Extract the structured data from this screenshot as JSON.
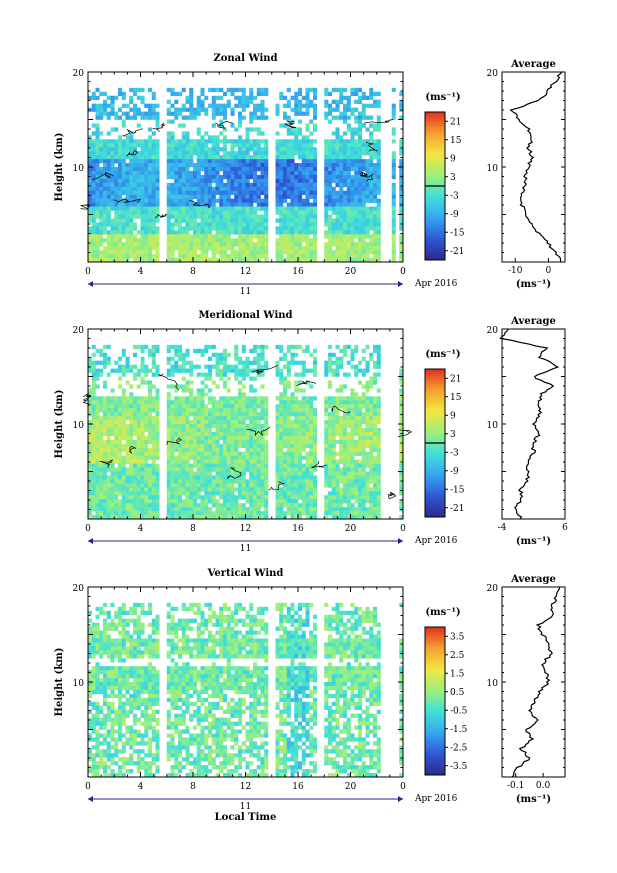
{
  "figure": {
    "x_label": "Local Time",
    "date_label": "Apr 2016",
    "day_label": "11",
    "avg_title": "Average",
    "y_label": "Height (km)"
  },
  "panels": [
    {
      "title": "Zonal Wind",
      "unit": "(ms⁻¹)",
      "x_ticks": [
        "0",
        "4",
        "8",
        "12",
        "16",
        "20",
        "0"
      ],
      "y_ticks": [
        "20",
        "10"
      ],
      "colorbar_ticks": [
        "21",
        "15",
        "9",
        "3",
        "-3",
        "-9",
        "-15",
        "-21"
      ],
      "avg_x_ticks": [
        "-10",
        "0"
      ],
      "avg_unit": "(ms⁻¹)"
    },
    {
      "title": "Meridional Wind",
      "unit": "(ms⁻¹)",
      "x_ticks": [
        "0",
        "4",
        "8",
        "12",
        "16",
        "20",
        "0"
      ],
      "y_ticks": [
        "20",
        "10"
      ],
      "colorbar_ticks": [
        "21",
        "15",
        "9",
        "3",
        "-3",
        "-9",
        "-15",
        "-21"
      ],
      "avg_x_ticks": [
        "-4",
        "6"
      ],
      "avg_unit": "(ms⁻¹)"
    },
    {
      "title": "Vertical Wind",
      "unit": "(ms⁻¹)",
      "x_ticks": [
        "0",
        "4",
        "8",
        "12",
        "16",
        "20",
        "0"
      ],
      "y_ticks": [
        "20",
        "10"
      ],
      "colorbar_ticks": [
        "3.5",
        "2.5",
        "1.5",
        "0.5",
        "-0.5",
        "-1.5",
        "-2.5",
        "-3.5"
      ],
      "avg_x_ticks": [
        "-0.1",
        "0.0"
      ],
      "avg_unit": "(ms⁻¹)"
    }
  ],
  "chart_data": [
    {
      "type": "heatmap",
      "title": "Zonal Wind",
      "x_range_hours": [
        0,
        24
      ],
      "ylim": [
        0,
        20
      ],
      "color_range": [
        -24,
        24
      ],
      "colormap": [
        "#2a2a8a",
        "#2f58d8",
        "#35a8f0",
        "#40e0d8",
        "#9ef07a",
        "#f4e640",
        "#f5a030",
        "#e03020"
      ],
      "avg_profile": {
        "xlim": [
          -14,
          5
        ],
        "height": [
          0,
          1,
          2,
          3,
          4,
          5,
          6,
          7,
          8,
          9,
          10,
          11,
          12,
          13,
          14,
          15,
          16,
          17,
          18,
          19,
          20
        ],
        "values": [
          4,
          2,
          0,
          -3,
          -5,
          -7,
          -8,
          -8,
          -7,
          -7,
          -6,
          -5,
          -6,
          -5,
          -6,
          -9,
          -11,
          -3,
          0,
          2,
          4
        ]
      }
    },
    {
      "type": "heatmap",
      "title": "Meridional Wind",
      "x_range_hours": [
        0,
        24
      ],
      "ylim": [
        0,
        20
      ],
      "color_range": [
        -24,
        24
      ],
      "colormap": [
        "#2a2a8a",
        "#2f58d8",
        "#35a8f0",
        "#40e0d8",
        "#9ef07a",
        "#f4e640",
        "#f5a030",
        "#e03020"
      ],
      "avg_profile": {
        "xlim": [
          -4,
          6
        ],
        "height": [
          0,
          1,
          2,
          3,
          4,
          5,
          6,
          7,
          8,
          9,
          10,
          11,
          12,
          13,
          14,
          15,
          16,
          17,
          18,
          19,
          20
        ],
        "values": [
          -1,
          -2,
          -1,
          -1,
          0,
          0,
          0,
          1,
          1,
          2,
          1,
          2,
          2,
          2,
          4,
          1,
          5,
          2,
          3,
          -4,
          -3
        ]
      }
    },
    {
      "type": "heatmap",
      "title": "Vertical Wind",
      "x_range_hours": [
        0,
        24
      ],
      "ylim": [
        0,
        20
      ],
      "color_range": [
        -4,
        4
      ],
      "colormap": [
        "#2a2a8a",
        "#2f58d8",
        "#35a8f0",
        "#40e0d8",
        "#9ef07a",
        "#f4e640",
        "#f5a030",
        "#e03020"
      ],
      "avg_profile": {
        "xlim": [
          -0.15,
          0.08
        ],
        "height": [
          0,
          1,
          2,
          3,
          4,
          5,
          6,
          7,
          8,
          9,
          10,
          11,
          12,
          13,
          14,
          15,
          16,
          17,
          18,
          19,
          20
        ],
        "values": [
          -0.11,
          -0.09,
          -0.05,
          -0.08,
          -0.04,
          -0.06,
          -0.02,
          -0.05,
          -0.03,
          -0.01,
          0.02,
          0.01,
          0.0,
          0.03,
          0.02,
          0.0,
          -0.02,
          0.04,
          0.03,
          0.05,
          0.06
        ]
      }
    }
  ]
}
